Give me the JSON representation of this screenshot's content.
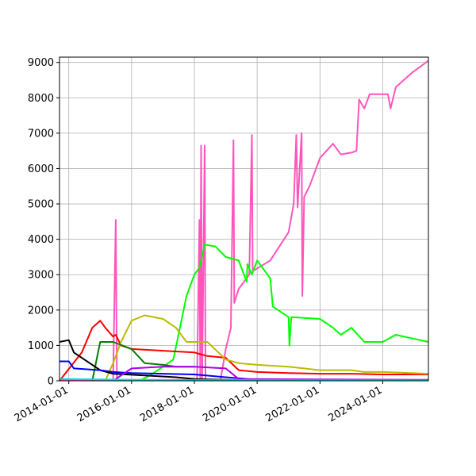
{
  "chart_data": {
    "type": "line",
    "title": "",
    "xlabel": "",
    "ylabel": "",
    "x_type": "date",
    "xlim": [
      "2013-09-15",
      "2025-06-15"
    ],
    "ylim": [
      0,
      9150
    ],
    "grid": true,
    "legend": "none",
    "x_ticks": [
      "2014-01-01",
      "2016-01-01",
      "2018-01-01",
      "2020-01-01",
      "2022-01-01",
      "2024-01-01"
    ],
    "y_ticks": [
      0,
      1000,
      2000,
      3000,
      4000,
      5000,
      6000,
      7000,
      8000,
      9000
    ],
    "series": [
      {
        "color": "#ff55bb",
        "points": [
          [
            "2013-09-15",
            30
          ],
          [
            "2015-06-01",
            30
          ],
          [
            "2015-07-01",
            4550
          ],
          [
            "2015-07-15",
            30
          ],
          [
            "2017-01-01",
            30
          ],
          [
            "2018-02-01",
            30
          ],
          [
            "2018-03-01",
            4550
          ],
          [
            "2018-03-10",
            30
          ],
          [
            "2018-03-20",
            6650
          ],
          [
            "2018-04-01",
            30
          ],
          [
            "2018-05-01",
            6650
          ],
          [
            "2018-05-10",
            30
          ],
          [
            "2018-09-01",
            30
          ],
          [
            "2018-11-01",
            30
          ],
          [
            "2019-01-01",
            900
          ],
          [
            "2019-03-01",
            1500
          ],
          [
            "2019-04-01",
            6800
          ],
          [
            "2019-04-10",
            2200
          ],
          [
            "2019-06-01",
            2600
          ],
          [
            "2019-10-01",
            3000
          ],
          [
            "2019-11-01",
            6950
          ],
          [
            "2019-11-10",
            3100
          ],
          [
            "2020-06-01",
            3400
          ],
          [
            "2021-01-01",
            4200
          ],
          [
            "2021-03-01",
            5000
          ],
          [
            "2021-04-01",
            6950
          ],
          [
            "2021-04-15",
            4900
          ],
          [
            "2021-06-01",
            7000
          ],
          [
            "2021-06-10",
            2400
          ],
          [
            "2021-07-01",
            5200
          ],
          [
            "2021-09-01",
            5500
          ],
          [
            "2022-01-01",
            6300
          ],
          [
            "2022-06-01",
            6700
          ],
          [
            "2022-09-01",
            6400
          ],
          [
            "2023-01-01",
            6450
          ],
          [
            "2023-03-01",
            6500
          ],
          [
            "2023-04-01",
            7950
          ],
          [
            "2023-06-01",
            7700
          ],
          [
            "2023-08-01",
            8100
          ],
          [
            "2024-03-01",
            8100
          ],
          [
            "2024-04-01",
            7700
          ],
          [
            "2024-06-01",
            8300
          ],
          [
            "2024-12-01",
            8700
          ],
          [
            "2025-06-15",
            9050
          ]
        ]
      },
      {
        "color": "#00ff00",
        "points": [
          [
            "2016-04-01",
            0
          ],
          [
            "2016-08-01",
            150
          ],
          [
            "2017-01-01",
            400
          ],
          [
            "2017-05-01",
            600
          ],
          [
            "2017-10-01",
            2400
          ],
          [
            "2018-01-01",
            3000
          ],
          [
            "2018-03-01",
            3200
          ],
          [
            "2018-05-01",
            3850
          ],
          [
            "2018-09-01",
            3800
          ],
          [
            "2019-01-01",
            3500
          ],
          [
            "2019-06-01",
            3400
          ],
          [
            "2019-09-01",
            2800
          ],
          [
            "2019-09-10",
            3300
          ],
          [
            "2019-11-01",
            3000
          ],
          [
            "2020-01-01",
            3400
          ],
          [
            "2020-06-01",
            2900
          ],
          [
            "2020-07-01",
            2100
          ],
          [
            "2021-01-01",
            1800
          ],
          [
            "2021-01-10",
            1000
          ],
          [
            "2021-02-01",
            1800
          ],
          [
            "2022-01-01",
            1750
          ],
          [
            "2022-06-01",
            1500
          ],
          [
            "2022-09-01",
            1300
          ],
          [
            "2023-01-01",
            1500
          ],
          [
            "2023-06-01",
            1100
          ],
          [
            "2024-01-01",
            1100
          ],
          [
            "2024-06-01",
            1300
          ],
          [
            "2025-06-15",
            1100
          ]
        ]
      },
      {
        "color": "#ff0000",
        "points": [
          [
            "2013-09-15",
            0
          ],
          [
            "2014-06-01",
            800
          ],
          [
            "2014-10-01",
            1500
          ],
          [
            "2015-01-01",
            1700
          ],
          [
            "2015-03-01",
            1500
          ],
          [
            "2015-06-01",
            1250
          ],
          [
            "2015-07-01",
            1300
          ],
          [
            "2015-09-01",
            1000
          ],
          [
            "2016-01-01",
            900
          ],
          [
            "2017-01-01",
            850
          ],
          [
            "2018-01-01",
            800
          ],
          [
            "2018-06-01",
            700
          ],
          [
            "2019-01-01",
            650
          ],
          [
            "2019-06-01",
            300
          ],
          [
            "2020-01-01",
            250
          ],
          [
            "2021-01-01",
            220
          ],
          [
            "2022-01-01",
            200
          ],
          [
            "2023-01-01",
            200
          ],
          [
            "2024-01-01",
            180
          ],
          [
            "2025-06-15",
            180
          ]
        ]
      },
      {
        "color": "#bbbb00",
        "points": [
          [
            "2015-03-01",
            0
          ],
          [
            "2015-06-01",
            500
          ],
          [
            "2015-09-01",
            1100
          ],
          [
            "2016-01-01",
            1700
          ],
          [
            "2016-06-01",
            1850
          ],
          [
            "2017-01-01",
            1750
          ],
          [
            "2017-06-01",
            1500
          ],
          [
            "2017-10-01",
            1100
          ],
          [
            "2018-06-01",
            1100
          ],
          [
            "2019-01-01",
            600
          ],
          [
            "2019-06-01",
            500
          ],
          [
            "2020-01-01",
            450
          ],
          [
            "2021-01-01",
            400
          ],
          [
            "2022-01-01",
            300
          ],
          [
            "2023-01-01",
            300
          ],
          [
            "2023-06-01",
            250
          ],
          [
            "2024-01-01",
            250
          ],
          [
            "2025-06-15",
            200
          ]
        ]
      },
      {
        "color": "#008000",
        "points": [
          [
            "2014-10-01",
            0
          ],
          [
            "2015-01-01",
            1100
          ],
          [
            "2015-06-01",
            1100
          ],
          [
            "2016-01-01",
            900
          ],
          [
            "2016-06-01",
            500
          ],
          [
            "2017-01-01",
            450
          ],
          [
            "2017-06-01",
            400
          ],
          [
            "2018-01-01",
            400
          ]
        ]
      },
      {
        "color": "#000000",
        "points": [
          [
            "2013-09-15",
            1100
          ],
          [
            "2014-01-01",
            1150
          ],
          [
            "2014-03-01",
            800
          ],
          [
            "2014-09-01",
            500
          ],
          [
            "2015-01-01",
            300
          ],
          [
            "2015-06-01",
            200
          ],
          [
            "2016-06-01",
            150
          ],
          [
            "2017-06-01",
            100
          ],
          [
            "2018-01-01",
            50
          ],
          [
            "2019-06-01",
            20
          ],
          [
            "2025-06-15",
            10
          ]
        ]
      },
      {
        "color": "#0000ff",
        "points": [
          [
            "2013-09-15",
            550
          ],
          [
            "2014-01-01",
            550
          ],
          [
            "2014-03-01",
            350
          ],
          [
            "2015-01-01",
            300
          ],
          [
            "2015-06-01",
            250
          ],
          [
            "2016-01-01",
            220
          ],
          [
            "2017-01-01",
            200
          ],
          [
            "2018-01-01",
            180
          ],
          [
            "2019-01-01",
            100
          ],
          [
            "2020-01-01",
            30
          ],
          [
            "2025-06-15",
            20
          ]
        ]
      },
      {
        "color": "#aa00ee",
        "points": [
          [
            "2015-06-01",
            0
          ],
          [
            "2016-01-01",
            350
          ],
          [
            "2017-01-01",
            400
          ],
          [
            "2018-01-01",
            400
          ],
          [
            "2019-01-01",
            350
          ],
          [
            "2019-06-01",
            50
          ],
          [
            "2025-06-15",
            30
          ]
        ]
      },
      {
        "color": "#00dddd",
        "points": [
          [
            "2013-09-15",
            50
          ],
          [
            "2015-01-01",
            40
          ],
          [
            "2016-01-01",
            30
          ],
          [
            "2018-01-01",
            20
          ],
          [
            "2025-06-15",
            10
          ]
        ]
      }
    ]
  }
}
